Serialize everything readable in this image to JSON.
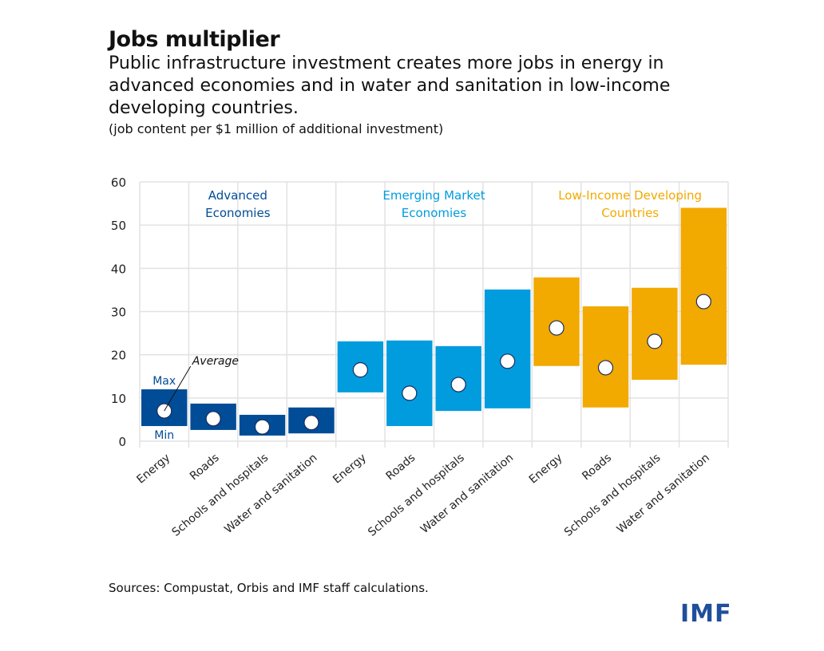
{
  "title": "Jobs multiplier",
  "subtitle": "Public infrastructure investment creates more jobs in energy in advanced economies and in water and sanitation in low-income developing countries.",
  "units": "(job content per $1 million of additional investment)",
  "source": "Sources: Compustat, Orbis and IMF staff calculations.",
  "logo": "IMF",
  "chart_data": {
    "type": "floating-bar-range-with-average",
    "ylim": [
      0,
      60
    ],
    "yticks": [
      0,
      10,
      20,
      30,
      40,
      50,
      60
    ],
    "grid": true,
    "annotations": {
      "max": "Max",
      "min": "Min",
      "average": "Average"
    },
    "groups": [
      {
        "name": "Advanced Economies",
        "color": "#004c97",
        "categories": [
          "Energy",
          "Roads",
          "Schools and hospitals",
          "Water and sanitation"
        ],
        "min": [
          3.5,
          2.6,
          1.3,
          1.8
        ],
        "max": [
          12.0,
          8.7,
          6.1,
          7.8
        ],
        "average": [
          7.0,
          5.2,
          3.3,
          4.3
        ]
      },
      {
        "name": "Emerging Market Economies",
        "color": "#009cde",
        "categories": [
          "Energy",
          "Roads",
          "Schools and hospitals",
          "Water and sanitation"
        ],
        "min": [
          11.3,
          3.5,
          7.0,
          7.6
        ],
        "max": [
          23.1,
          23.3,
          22.0,
          35.1
        ],
        "average": [
          16.5,
          11.1,
          13.1,
          18.5
        ]
      },
      {
        "name": "Low-Income Developing Countries",
        "color": "#f2a900",
        "categories": [
          "Energy",
          "Roads",
          "Schools and hospitals",
          "Water and sanitation"
        ],
        "min": [
          17.4,
          7.8,
          14.2,
          17.7
        ],
        "max": [
          37.9,
          31.2,
          35.5,
          54.0
        ],
        "average": [
          26.2,
          17.0,
          23.1,
          32.3
        ]
      }
    ]
  }
}
